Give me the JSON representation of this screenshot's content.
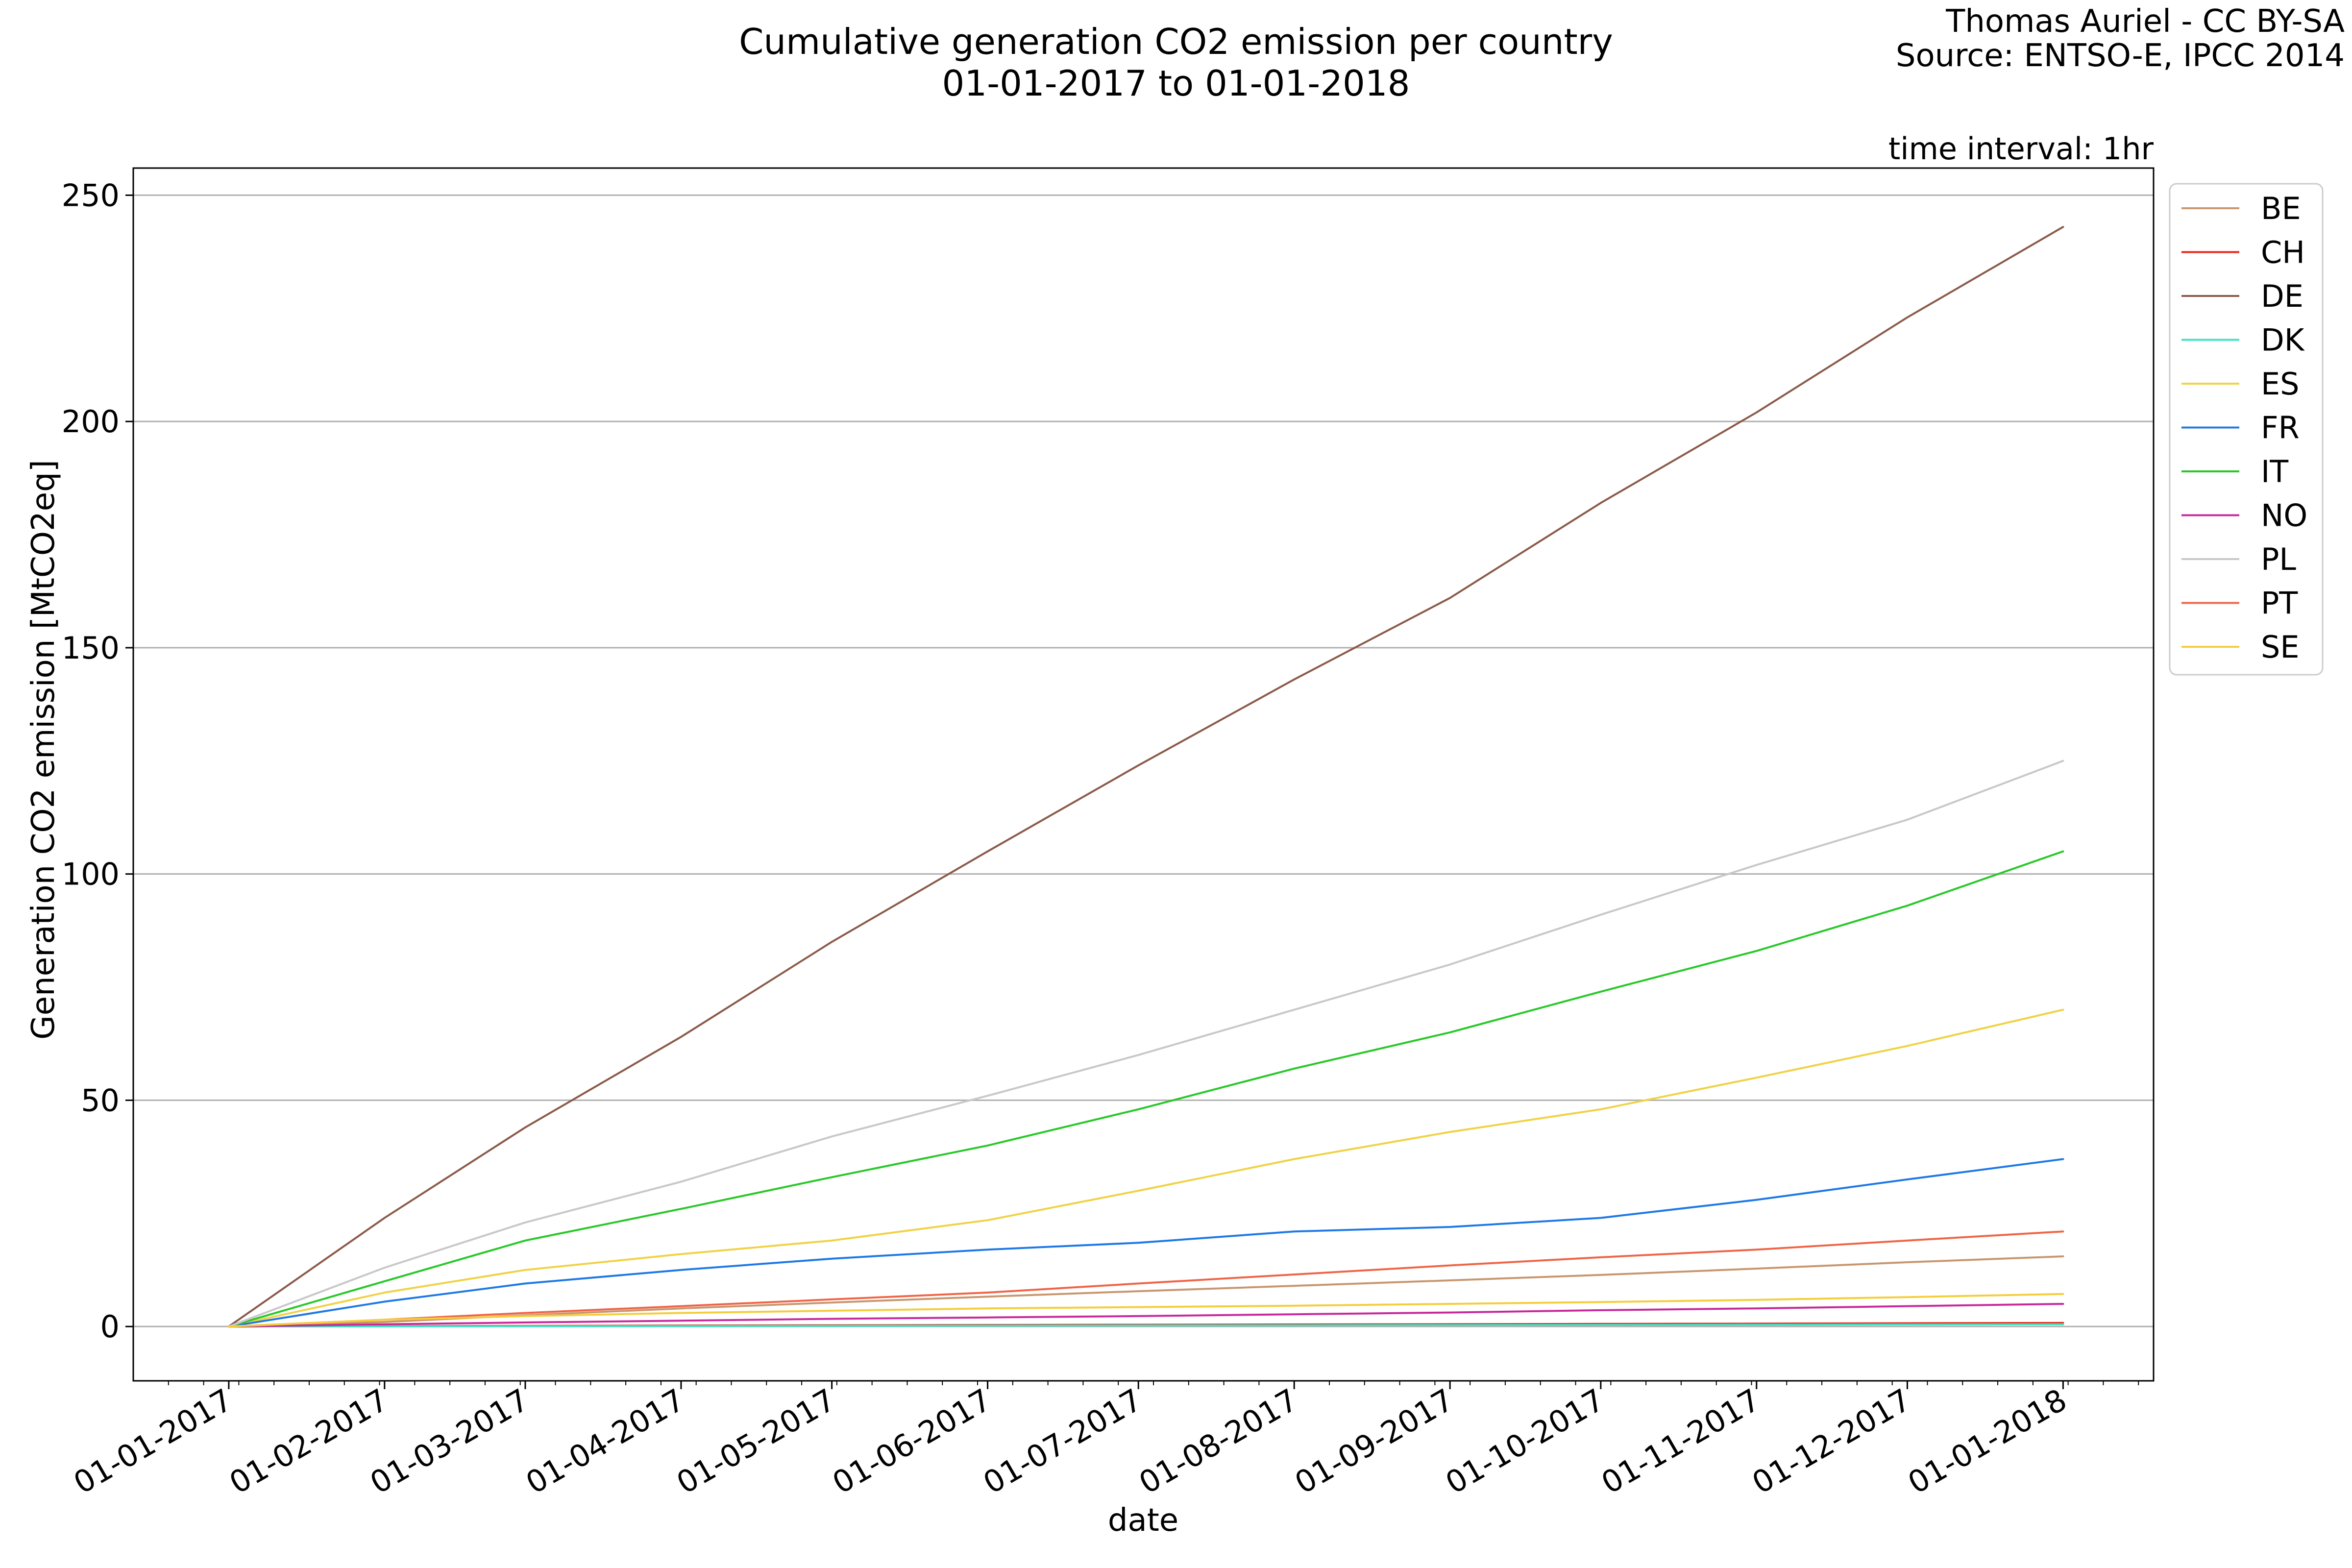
{
  "chart_data": {
    "type": "line",
    "title": "Cumulative generation CO2 emission per country",
    "subtitle": "01-01-2017 to 01-01-2018",
    "credit": [
      "Thomas Auriel - CC BY-SA",
      "Source: ENTSO-E, IPCC 2014"
    ],
    "annotation": "time interval: 1hr",
    "xlabel": "date",
    "ylabel": "Generation CO2 emission [MtCO2eq]",
    "ylim": [
      -12,
      256
    ],
    "xlim": [
      "2016-12-13",
      "2018-01-19"
    ],
    "yticks": [
      0,
      50,
      100,
      150,
      200,
      250
    ],
    "xticks": [
      "01-01-2017",
      "01-02-2017",
      "01-03-2017",
      "01-04-2017",
      "01-05-2017",
      "01-06-2017",
      "01-07-2017",
      "01-08-2017",
      "01-09-2017",
      "01-10-2017",
      "01-11-2017",
      "01-12-2017",
      "01-01-2018"
    ],
    "grid": "horizontal",
    "legend_position": "right",
    "x": [
      "2017-01-01",
      "2017-02-01",
      "2017-03-01",
      "2017-04-01",
      "2017-05-01",
      "2017-06-01",
      "2017-07-01",
      "2017-08-01",
      "2017-09-01",
      "2017-10-01",
      "2017-11-01",
      "2017-12-01",
      "2018-01-01"
    ],
    "series": [
      {
        "name": "BE",
        "color": "#c8966e",
        "values": [
          0,
          1.0,
          2.5,
          4.0,
          5.3,
          6.6,
          7.8,
          9.0,
          10.2,
          11.4,
          12.8,
          14.2,
          15.5
        ]
      },
      {
        "name": "CH",
        "color": "#e8281e",
        "values": [
          0,
          0.08,
          0.15,
          0.22,
          0.28,
          0.34,
          0.4,
          0.46,
          0.52,
          0.58,
          0.64,
          0.72,
          0.8
        ]
      },
      {
        "name": "DE",
        "color": "#8b5a4a",
        "values": [
          0,
          24,
          44,
          64,
          85,
          105,
          124,
          143,
          161,
          182,
          202,
          223,
          243
        ]
      },
      {
        "name": "DK",
        "color": "#40e0c0",
        "values": [
          0,
          0.04,
          0.08,
          0.12,
          0.16,
          0.2,
          0.24,
          0.28,
          0.32,
          0.36,
          0.4,
          0.45,
          0.5
        ]
      },
      {
        "name": "ES",
        "color": "#f0d246",
        "values": [
          0,
          7.5,
          12.5,
          16,
          19,
          23.5,
          30,
          37,
          43,
          48,
          55,
          62,
          70
        ]
      },
      {
        "name": "FR",
        "color": "#1e78e6",
        "values": [
          0,
          5.5,
          9.5,
          12.5,
          15,
          17,
          18.5,
          21,
          22,
          24,
          28,
          32.5,
          37
        ]
      },
      {
        "name": "IT",
        "color": "#28c828",
        "values": [
          0,
          10,
          19,
          26,
          33,
          40,
          48,
          57,
          65,
          74,
          83,
          93,
          105
        ]
      },
      {
        "name": "NO",
        "color": "#c8289a",
        "values": [
          0,
          0.5,
          0.9,
          1.3,
          1.7,
          2.0,
          2.3,
          2.7,
          3.1,
          3.6,
          4.0,
          4.5,
          5.0
        ]
      },
      {
        "name": "PL",
        "color": "#c8c8c8",
        "values": [
          0,
          13,
          23,
          32,
          42,
          51,
          60,
          70,
          80,
          91,
          102,
          112,
          125
        ]
      },
      {
        "name": "PT",
        "color": "#f06446",
        "values": [
          0,
          1.5,
          3.0,
          4.5,
          6.0,
          7.5,
          9.5,
          11.5,
          13.5,
          15.3,
          17.0,
          19.0,
          21.0
        ]
      },
      {
        "name": "SE",
        "color": "#f5cd3c",
        "values": [
          0,
          1.5,
          2.3,
          3.0,
          3.5,
          4.0,
          4.3,
          4.6,
          5.0,
          5.4,
          5.9,
          6.5,
          7.2
        ]
      }
    ]
  }
}
